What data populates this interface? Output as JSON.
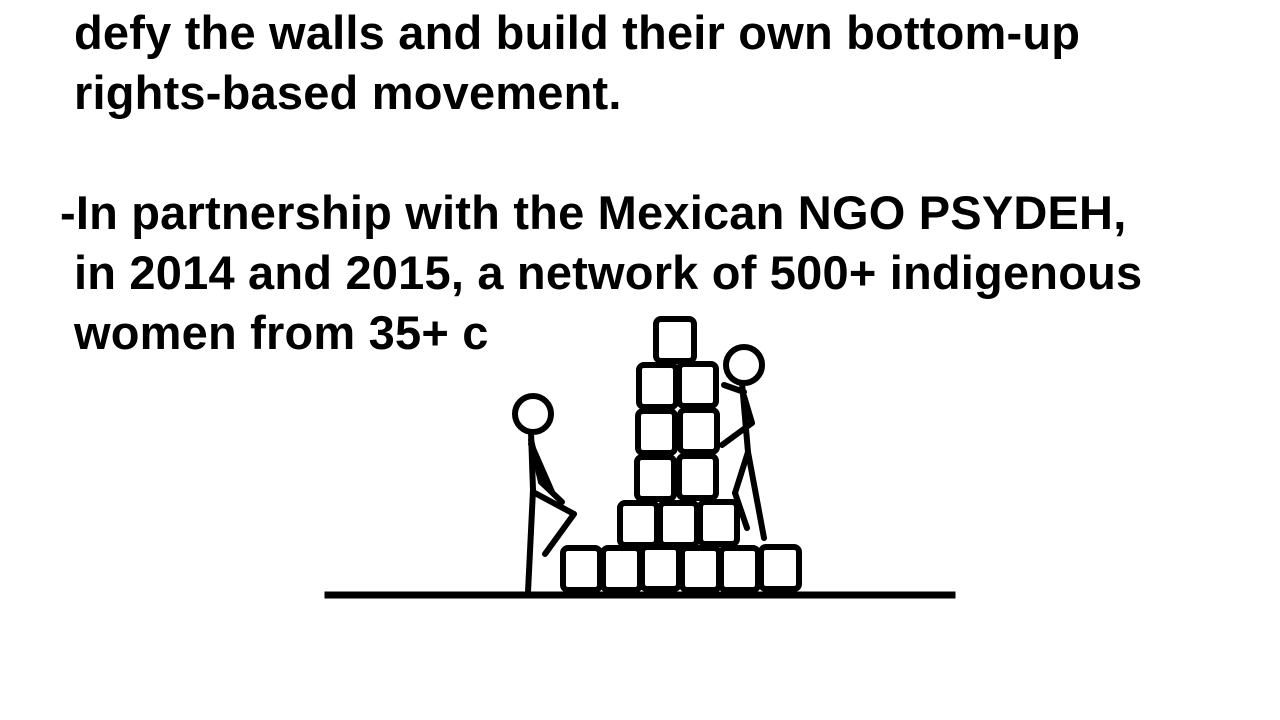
{
  "slide": {
    "paragraph1": {
      "line1": "defy the walls and build their own bottom-up",
      "line2": "rights-based movement."
    },
    "paragraph2": {
      "line1": "-In partnership with the Mexican NGO PSYDEH,",
      "line2": "in 2014 and 2015, a network of 500+ indigenous",
      "line3": "women from 35+ c"
    }
  },
  "illustration": {
    "icon": "stick-figures-building-block-wall",
    "stroke_color": "#000000",
    "fill_color": "#ffffff"
  }
}
